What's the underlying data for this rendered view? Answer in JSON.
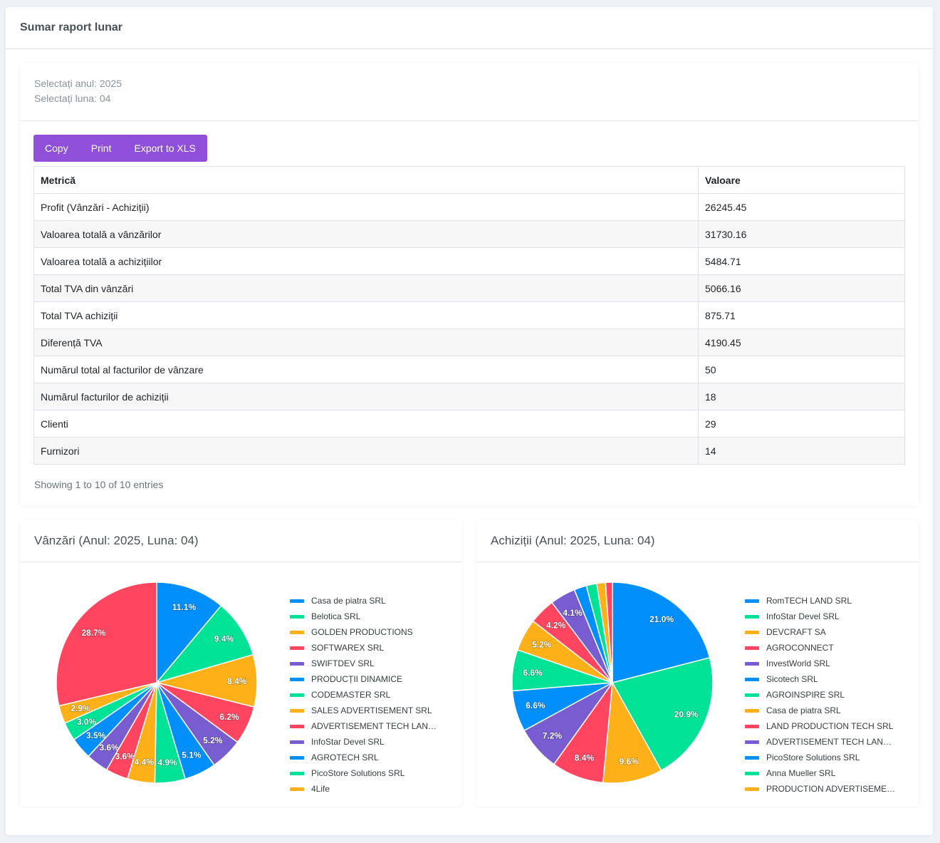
{
  "header": {
    "title": "Sumar raport lunar"
  },
  "filters": [
    "Selectați anul: 2025",
    "Selectați luna: 04"
  ],
  "buttons": [
    "Copy",
    "Print",
    "Export to XLS"
  ],
  "table": {
    "headers": [
      "Metrică",
      "Valoare"
    ],
    "rows": [
      [
        "Profit (Vânzări - Achiziții)",
        "26245.45"
      ],
      [
        "Valoarea totală a vânzărilor",
        "31730.16"
      ],
      [
        "Valoarea totală a achizițiilor",
        "5484.71"
      ],
      [
        "Total TVA din vânzări",
        "5066.16"
      ],
      [
        "Total TVA achiziții",
        "875.71"
      ],
      [
        "Diferență TVA",
        "4190.45"
      ],
      [
        "Numărul total al facturilor de vânzare",
        "50"
      ],
      [
        "Numărul facturilor de achiziții",
        "18"
      ],
      [
        "Clienti",
        "29"
      ],
      [
        "Furnizori",
        "14"
      ]
    ],
    "info": "Showing 1 to 10 of 10 entries"
  },
  "charts": [
    {
      "type": "pie",
      "title": "Vânzări (Anul: 2025, Luna: 04)",
      "categories": [
        "Casa de piatra SRL",
        "Belotica SRL",
        "GOLDEN PRODUCTIONS",
        "SOFTWAREX SRL",
        "SWIFTDEV SRL",
        "PRODUCȚII DINAMICE",
        "CODEMASTER SRL",
        "SALES ADVERTISEMENT SRL",
        "ADVERTISEMENT TECH LAN…",
        "InfoStar Devel SRL",
        "AGROTECH SRL",
        "PicoStore Solutions SRL",
        "4Life",
        null
      ],
      "values": [
        11.1,
        9.4,
        8.4,
        6.2,
        5.2,
        5.1,
        4.9,
        4.4,
        3.6,
        3.6,
        3.5,
        3.0,
        2.9,
        28.7
      ],
      "value_labels": [
        "11.1%",
        "9.4%",
        "8.4%",
        "6.2%",
        "5.2%",
        "5.1%",
        "4.9%",
        "4.4%",
        "3.6%",
        "3.6%",
        "3.5%",
        "3.0%",
        "2.9%",
        "28.7%"
      ],
      "colors": [
        "#008ffb",
        "#00e396",
        "#feb019",
        "#ff4560",
        "#775dd0"
      ]
    },
    {
      "type": "pie",
      "title": "Achiziții (Anul: 2025, Luna: 04)",
      "categories": [
        "RomTECH LAND SRL",
        "InfoStar Devel SRL",
        "DEVCRAFT SA",
        "AGROCONNECT",
        "InvestWorld SRL",
        "Sicotech SRL",
        "AGROINSPIRE SRL",
        "Casa de piatra SRL",
        "LAND PRODUCTION TECH SRL",
        "ADVERTISEMENT TECH LAN…",
        "PicoStore Solutions SRL",
        "Anna Mueller SRL",
        "PRODUCTION ADVERTISEME…",
        null
      ],
      "values": [
        21.0,
        20.9,
        9.6,
        8.4,
        7.2,
        6.6,
        6.6,
        5.2,
        4.2,
        4.1,
        2.0,
        1.7,
        1.4,
        1.1
      ],
      "value_labels": [
        "21.0%",
        "20.9%",
        "9.6%",
        "8.4%",
        "7.2%",
        "6.6%",
        "6.6%",
        "5.2%",
        "4.2%",
        "4.1%",
        null,
        null,
        null,
        null
      ],
      "colors": [
        "#008ffb",
        "#00e396",
        "#feb019",
        "#ff4560",
        "#775dd0"
      ]
    }
  ]
}
